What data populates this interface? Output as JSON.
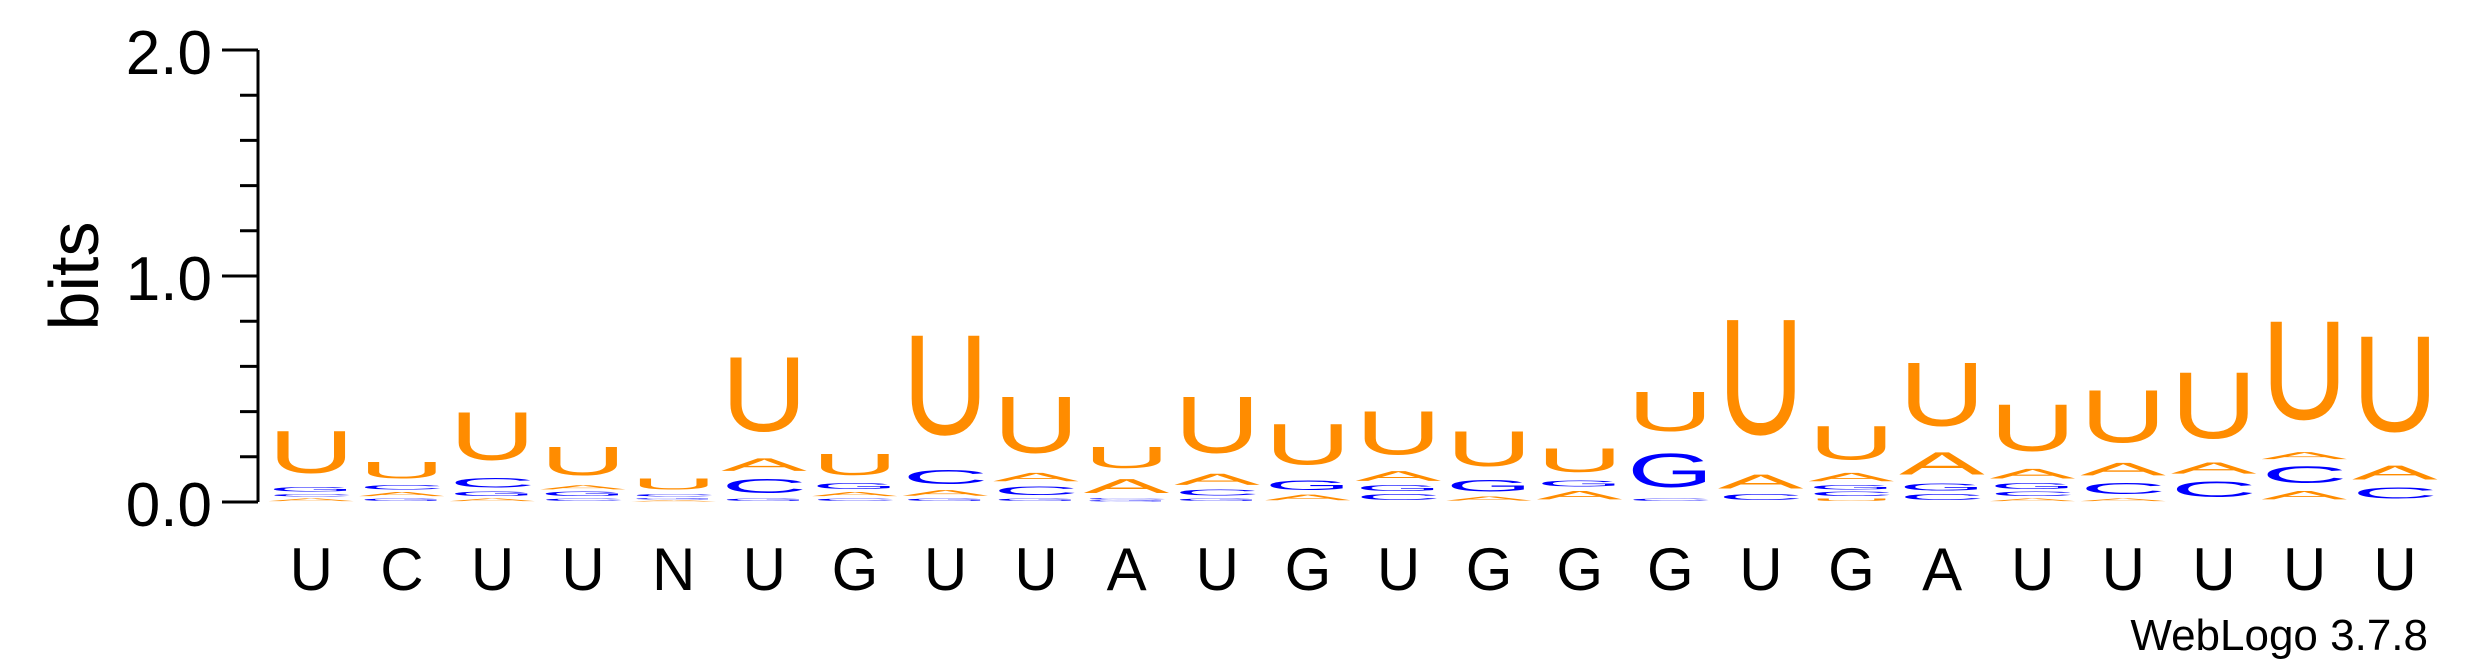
{
  "chart_data": {
    "type": "sequence-logo",
    "ylabel": "bits",
    "ylim": [
      0,
      2.0
    ],
    "yticks": [
      "0.0",
      "1.0",
      "2.0"
    ],
    "credit": "WebLogo 3.7.8",
    "colors": {
      "U": "#ff8c00",
      "C": "#0000ff",
      "G": "#0000ff",
      "A": "#ff8c00"
    },
    "positions": [
      {
        "label": "U",
        "stack": [
          [
            "A",
            0.02
          ],
          [
            "C",
            0.02
          ],
          [
            "G",
            0.03
          ],
          [
            "U",
            0.3
          ]
        ]
      },
      {
        "label": "C",
        "stack": [
          [
            "G",
            0.02
          ],
          [
            "A",
            0.03
          ],
          [
            "C",
            0.03
          ],
          [
            "U",
            0.12
          ]
        ]
      },
      {
        "label": "U",
        "stack": [
          [
            "A",
            0.02
          ],
          [
            "G",
            0.03
          ],
          [
            "C",
            0.07
          ],
          [
            "U",
            0.34
          ]
        ]
      },
      {
        "label": "U",
        "stack": [
          [
            "C",
            0.02
          ],
          [
            "G",
            0.03
          ],
          [
            "A",
            0.03
          ],
          [
            "U",
            0.2
          ]
        ]
      },
      {
        "label": "N",
        "stack": [
          [
            "A",
            0.01
          ],
          [
            "G",
            0.01
          ],
          [
            "C",
            0.02
          ],
          [
            "U",
            0.08
          ]
        ]
      },
      {
        "label": "U",
        "stack": [
          [
            "G",
            0.02
          ],
          [
            "C",
            0.1
          ],
          [
            "A",
            0.09
          ],
          [
            "U",
            0.53
          ]
        ]
      },
      {
        "label": "G",
        "stack": [
          [
            "C",
            0.02
          ],
          [
            "A",
            0.03
          ],
          [
            "G",
            0.04
          ],
          [
            "U",
            0.15
          ]
        ]
      },
      {
        "label": "U",
        "stack": [
          [
            "G",
            0.02
          ],
          [
            "A",
            0.04
          ],
          [
            "C",
            0.1
          ],
          [
            "U",
            0.71
          ]
        ]
      },
      {
        "label": "U",
        "stack": [
          [
            "G",
            0.02
          ],
          [
            "C",
            0.06
          ],
          [
            "A",
            0.06
          ],
          [
            "U",
            0.4
          ]
        ]
      },
      {
        "label": "A",
        "stack": [
          [
            "G",
            0.01
          ],
          [
            "C",
            0.01
          ],
          [
            "A",
            0.1
          ],
          [
            "U",
            0.15
          ]
        ]
      },
      {
        "label": "U",
        "stack": [
          [
            "G",
            0.02
          ],
          [
            "C",
            0.04
          ],
          [
            "A",
            0.08
          ],
          [
            "U",
            0.4
          ]
        ]
      },
      {
        "label": "G",
        "stack": [
          [
            "A",
            0.04
          ],
          [
            "G",
            0.07
          ],
          [
            "U",
            0.29
          ]
        ]
      },
      {
        "label": "U",
        "stack": [
          [
            "C",
            0.04
          ],
          [
            "G",
            0.04
          ],
          [
            "A",
            0.07
          ],
          [
            "U",
            0.31
          ]
        ]
      },
      {
        "label": "G",
        "stack": [
          [
            "A",
            0.03
          ],
          [
            "G",
            0.08
          ],
          [
            "U",
            0.25
          ]
        ]
      },
      {
        "label": "G",
        "stack": [
          [
            "A",
            0.06
          ],
          [
            "G",
            0.04
          ],
          [
            "U",
            0.17
          ]
        ]
      },
      {
        "label": "G",
        "stack": [
          [
            "C",
            0.02
          ],
          [
            "G",
            0.24
          ],
          [
            "U",
            0.28
          ]
        ]
      },
      {
        "label": "U",
        "stack": [
          [
            "C",
            0.04
          ],
          [
            "A",
            0.1
          ],
          [
            "U",
            0.82
          ]
        ]
      },
      {
        "label": "G",
        "stack": [
          [
            "U",
            0.02
          ],
          [
            "C",
            0.03
          ],
          [
            "G",
            0.03
          ],
          [
            "A",
            0.06
          ],
          [
            "U",
            0.24
          ]
        ]
      },
      {
        "label": "A",
        "stack": [
          [
            "C",
            0.04
          ],
          [
            "G",
            0.05
          ],
          [
            "A",
            0.16
          ],
          [
            "U",
            0.45
          ]
        ]
      },
      {
        "label": "U",
        "stack": [
          [
            "A",
            0.02
          ],
          [
            "C",
            0.03
          ],
          [
            "G",
            0.04
          ],
          [
            "A",
            0.07
          ],
          [
            "U",
            0.33
          ]
        ]
      },
      {
        "label": "U",
        "stack": [
          [
            "A",
            0.02
          ],
          [
            "C",
            0.08
          ],
          [
            "A",
            0.09
          ],
          [
            "U",
            0.37
          ]
        ]
      },
      {
        "label": "U",
        "stack": [
          [
            "C",
            0.11
          ],
          [
            "A",
            0.08
          ],
          [
            "U",
            0.47
          ]
        ]
      },
      {
        "label": "U",
        "stack": [
          [
            "A",
            0.06
          ],
          [
            "C",
            0.12
          ],
          [
            "A",
            0.05
          ],
          [
            "U",
            0.7
          ]
        ]
      },
      {
        "label": "U",
        "stack": [
          [
            "C",
            0.08
          ],
          [
            "A",
            0.1
          ],
          [
            "U",
            0.68
          ]
        ]
      }
    ]
  }
}
